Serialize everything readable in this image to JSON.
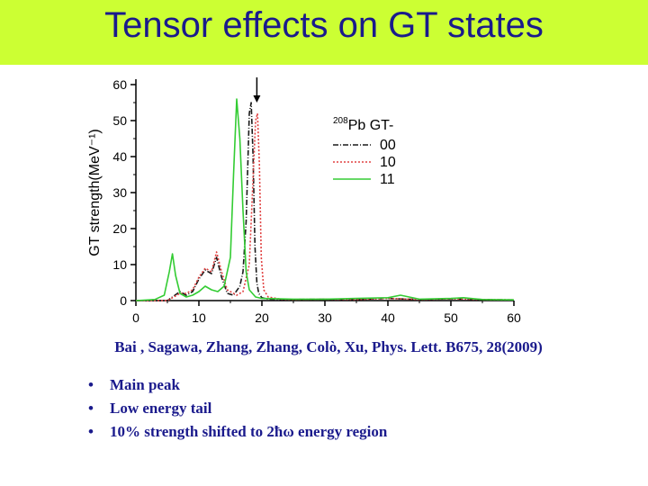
{
  "slide": {
    "title": "Tensor effects on GT states",
    "citation": "Bai , Sagawa, Zhang, Zhang, Colò, Xu, Phys. Lett. B675, 28(2009)",
    "bullets": [
      "Main peak",
      "Low energy tail",
      "10% strength shifted to 2ħω energy region"
    ],
    "bullet_symbol": "•",
    "colors": {
      "title_bar": "#ccff33",
      "title_text": "#1a1a8c",
      "body_text": "#1a1a8c"
    }
  },
  "chart_data": {
    "type": "line",
    "xlabel": "",
    "ylabel": "GT strength(MeV⁻¹)",
    "xlim": [
      0,
      60
    ],
    "ylim": [
      0,
      60
    ],
    "xticks": [
      0,
      10,
      20,
      30,
      40,
      50,
      60
    ],
    "yticks": [
      0,
      10,
      20,
      30,
      40,
      50,
      60
    ],
    "grid": false,
    "legend": {
      "title_sup": "208",
      "title_main": "Pb GT-",
      "placement": "top-right"
    },
    "annotations": [
      {
        "type": "arrow-down",
        "x": 19.2,
        "y_from": 62,
        "y_to": 55
      }
    ],
    "series": [
      {
        "name": "00",
        "color": "#1a1a1a",
        "dash": "6,2,1,2",
        "x": [
          0,
          5,
          7,
          8,
          9,
          10,
          11,
          12,
          12.8,
          13.6,
          14.5,
          15.5,
          16.5,
          17,
          17.5,
          18,
          18.3,
          18.6,
          18.9,
          19.2,
          19.5,
          20,
          21,
          23,
          25,
          30,
          35,
          40,
          45,
          50,
          55,
          60
        ],
        "y": [
          0,
          0,
          2.5,
          1.5,
          2.5,
          6,
          8.5,
          7.5,
          12,
          6.5,
          2,
          1.5,
          4,
          8,
          22,
          52,
          55,
          40,
          15,
          5,
          2,
          0.8,
          0.4,
          0.3,
          0.3,
          0.4,
          0.3,
          0.6,
          0.3,
          0.5,
          0.3,
          0.2
        ]
      },
      {
        "name": "10",
        "color": "#e04040",
        "dash": "2,2",
        "x": [
          0,
          5,
          7,
          8,
          9,
          10,
          11,
          12,
          12.8,
          13.6,
          14.5,
          16,
          17,
          18,
          18.5,
          19,
          19.3,
          19.6,
          19.9,
          20.3,
          21,
          23,
          25,
          30,
          35,
          40,
          45,
          50,
          55,
          60
        ],
        "y": [
          0,
          0,
          2,
          2,
          3,
          6.5,
          9,
          8,
          13.5,
          8,
          3,
          1.5,
          2.5,
          10,
          30,
          50,
          52,
          38,
          12,
          3,
          1,
          0.4,
          0.3,
          0.4,
          0.3,
          0.6,
          0.3,
          0.5,
          0.3,
          0.2
        ]
      },
      {
        "name": "11",
        "color": "#33cc33",
        "dash": "",
        "x": [
          0,
          3,
          4.5,
          5.3,
          5.8,
          6.3,
          7,
          8,
          9,
          10,
          11,
          12,
          13,
          14,
          15,
          15.5,
          16,
          16.5,
          17,
          17.5,
          18,
          19,
          20,
          25,
          30,
          35,
          40,
          42,
          45,
          50,
          52,
          55,
          60
        ],
        "y": [
          0,
          0.3,
          1.5,
          8,
          13,
          7,
          2,
          1,
          1.5,
          2.5,
          4,
          3,
          2.5,
          4,
          12,
          35,
          56,
          45,
          25,
          8,
          3,
          1,
          0.6,
          0.4,
          0.4,
          0.6,
          0.8,
          1.5,
          0.4,
          0.6,
          0.8,
          0.3,
          0.2
        ]
      }
    ]
  }
}
